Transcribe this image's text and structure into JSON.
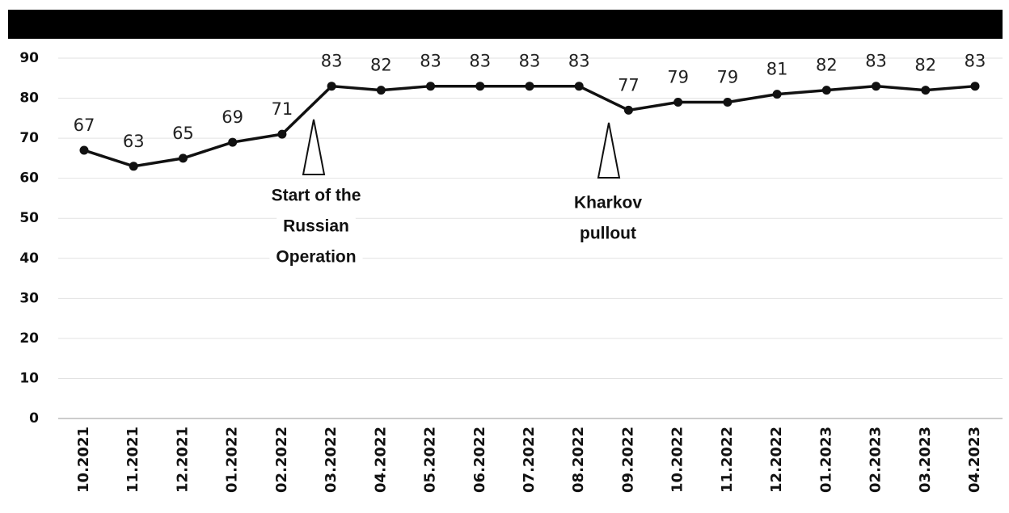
{
  "chart_data": {
    "type": "line",
    "categories": [
      "10.2021",
      "11.2021",
      "12.2021",
      "01.2022",
      "02.2022",
      "03.2022",
      "04.2022",
      "05.2022",
      "06.2022",
      "07.2022",
      "08.2022",
      "09.2022",
      "10.2022",
      "11.2022",
      "12.2022",
      "01.2023",
      "02.2023",
      "03.2023",
      "04.2023"
    ],
    "series": [
      {
        "color": "#111111",
        "values": [
          67,
          63,
          65,
          69,
          71,
          83,
          82,
          83,
          83,
          83,
          83,
          77,
          79,
          79,
          81,
          82,
          83,
          82,
          83
        ]
      }
    ],
    "ylim": [
      0,
      90
    ],
    "yticks": [
      0,
      10,
      20,
      30,
      40,
      50,
      60,
      70,
      80,
      90
    ],
    "grid": true,
    "annotations": [
      {
        "lines": [
          "Start of the",
          "Russian",
          "Operation"
        ]
      },
      {
        "lines": [
          "Kharkov",
          "pullout"
        ]
      }
    ]
  }
}
